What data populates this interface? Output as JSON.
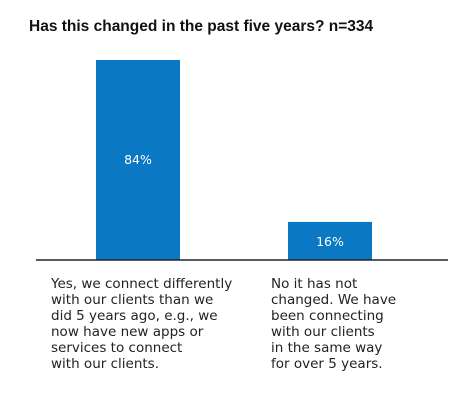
{
  "chart_data": {
    "type": "bar",
    "title": "Has this changed in the past five years? n=334",
    "categories": [
      "Yes, we connect differently with our clients than we did 5 years ago, e.g., we now have new apps or services to connect with our clients.",
      "No it has not changed. We have been connecting with our clients in the same way for over 5 years."
    ],
    "category_lines": [
      [
        "Yes, we connect differently",
        "with our clients than we",
        "did 5 years ago, e.g., we",
        "now have new apps or",
        "services to connect",
        "with our clients."
      ],
      [
        "No it has not",
        "changed. We have",
        "been connecting",
        "with our clients",
        "in the same way",
        "for over 5 years."
      ]
    ],
    "values": [
      84,
      16
    ],
    "value_labels": [
      "84%",
      "16%"
    ],
    "ylim": [
      0,
      100
    ],
    "grid": false,
    "bar_color": "#0a78c2",
    "baseline_color": "#222222"
  }
}
